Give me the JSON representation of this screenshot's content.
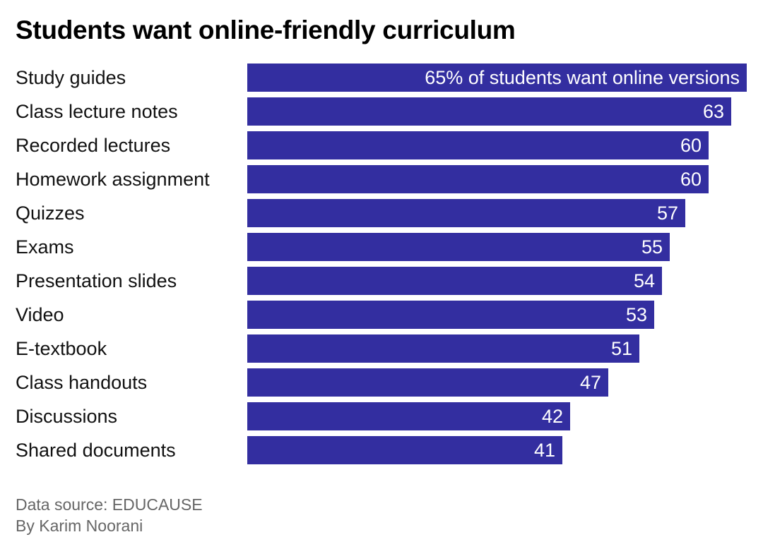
{
  "title": "Students want online-friendly curriculum",
  "footer": {
    "source": "Data source: EDUCAUSE",
    "author": "By Karim Noorani"
  },
  "colors": {
    "bar": "#332ea0",
    "label_text": "#111111",
    "value_text": "#ffffff",
    "footer_text": "#666666"
  },
  "bars": [
    {
      "label": "Study guides",
      "value": 65,
      "display": "65% of students want online versions"
    },
    {
      "label": "Class lecture notes",
      "value": 63,
      "display": "63"
    },
    {
      "label": "Recorded lectures",
      "value": 60,
      "display": "60"
    },
    {
      "label": "Homework assignment",
      "value": 60,
      "display": "60"
    },
    {
      "label": "Quizzes",
      "value": 57,
      "display": "57"
    },
    {
      "label": "Exams",
      "value": 55,
      "display": "55"
    },
    {
      "label": "Presentation slides",
      "value": 54,
      "display": "54"
    },
    {
      "label": "Video",
      "value": 53,
      "display": "53"
    },
    {
      "label": "E-textbook",
      "value": 51,
      "display": "51"
    },
    {
      "label": "Class handouts",
      "value": 47,
      "display": "47"
    },
    {
      "label": "Discussions",
      "value": 42,
      "display": "42"
    },
    {
      "label": "Shared documents",
      "value": 41,
      "display": "41"
    }
  ],
  "chart_data": {
    "type": "bar",
    "orientation": "horizontal",
    "title": "Students want online-friendly curriculum",
    "categories": [
      "Study guides",
      "Class lecture notes",
      "Recorded lectures",
      "Homework assignment",
      "Quizzes",
      "Exams",
      "Presentation slides",
      "Video",
      "E-textbook",
      "Class handouts",
      "Discussions",
      "Shared documents"
    ],
    "values": [
      65,
      63,
      60,
      60,
      57,
      55,
      54,
      53,
      51,
      47,
      42,
      41
    ],
    "unit": "% of students want online versions",
    "xlabel": "",
    "ylabel": "",
    "xlim": [
      0,
      65
    ],
    "grid": false,
    "legend": null,
    "annotations": [
      "65% of students want online versions"
    ],
    "source": "Data source: EDUCAUSE",
    "byline": "By Karim Noorani"
  }
}
